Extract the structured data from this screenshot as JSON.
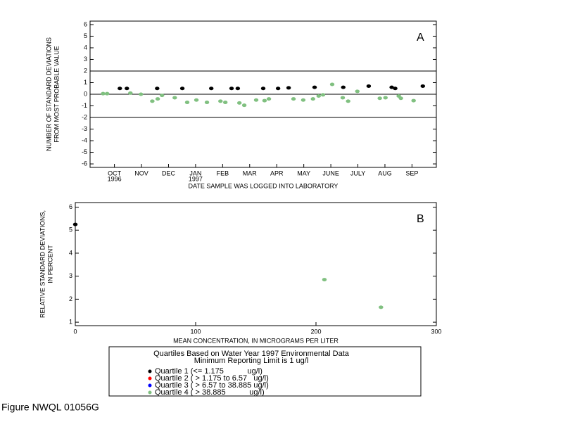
{
  "chart_data": [
    {
      "type": "scatter",
      "annotation": "A",
      "xlabel": "DATE SAMPLE WAS LOGGED INTO LABORATORY",
      "ylabel": [
        "NUMBER OF STANDARD DEVIATIONS",
        "FROM MOST PROBABLE VALUE"
      ],
      "xlim": [
        -0.4,
        12.4
      ],
      "ylim": [
        -6.3,
        6.3
      ],
      "xticks": [
        {
          "value": 0.5,
          "label": "OCT"
        },
        {
          "value": 1.5,
          "label": "NOV"
        },
        {
          "value": 2.5,
          "label": "DEC"
        },
        {
          "value": 3.5,
          "label": "JAN"
        },
        {
          "value": 4.5,
          "label": "FEB"
        },
        {
          "value": 5.5,
          "label": "MAR"
        },
        {
          "value": 6.5,
          "label": "APR"
        },
        {
          "value": 7.5,
          "label": "MAY"
        },
        {
          "value": 8.5,
          "label": "JUNE"
        },
        {
          "value": 9.5,
          "label": "JULY"
        },
        {
          "value": 10.5,
          "label": "AUG"
        },
        {
          "value": 11.5,
          "label": "SEP"
        }
      ],
      "xtick_years": [
        {
          "value": 0.5,
          "label": "1996"
        },
        {
          "value": 3.5,
          "label": "1997"
        }
      ],
      "yticks": [
        -6,
        -5,
        -4,
        -3,
        -2,
        -1,
        0,
        1,
        2,
        3,
        4,
        5,
        6
      ],
      "hlines": [
        2,
        0,
        -2
      ],
      "series": [
        {
          "color": "#000000",
          "x": [
            0.7,
            0.96,
            2.08,
            3.01,
            4.08,
            4.83,
            5.06,
            6.0,
            6.55,
            6.94,
            7.9,
            8.96,
            9.9,
            10.75,
            10.88,
            11.9
          ],
          "values": [
            0.5,
            0.5,
            0.5,
            0.5,
            0.5,
            0.5,
            0.5,
            0.5,
            0.5,
            0.55,
            0.6,
            0.6,
            0.7,
            0.6,
            0.5,
            0.7
          ]
        },
        {
          "color": "#80c080",
          "x": [
            0.08,
            0.23,
            1.09,
            1.48,
            1.9,
            2.1,
            2.26,
            2.73,
            3.19,
            3.53,
            3.92,
            4.42,
            4.6,
            5.12,
            5.3,
            5.74,
            6.05,
            6.21,
            7.12,
            7.48,
            7.84,
            8.05,
            8.21,
            8.55,
            8.94,
            9.14,
            9.48,
            10.31,
            10.52,
            11.01,
            11.09,
            11.56
          ],
          "values": [
            0.05,
            0.05,
            0.1,
            0,
            -0.6,
            -0.4,
            -0.1,
            -0.3,
            -0.7,
            -0.5,
            -0.7,
            -0.6,
            -0.7,
            -0.75,
            -0.95,
            -0.5,
            -0.55,
            -0.4,
            -0.4,
            -0.5,
            -0.4,
            -0.15,
            -0.05,
            0.85,
            -0.3,
            -0.6,
            0.25,
            -0.35,
            -0.3,
            -0.15,
            -0.35,
            -0.55
          ]
        }
      ]
    },
    {
      "type": "scatter",
      "annotation": "B",
      "xlabel": "MEAN CONCENTRATION, IN MICROGRAMS PER LITER",
      "ylabel": [
        "RELATIVE STANDARD DEVIATIONS,",
        "IN PERCENT"
      ],
      "xlim": [
        0,
        300
      ],
      "ylim": [
        0.85,
        6.2
      ],
      "xticks": [
        0,
        100,
        200,
        300
      ],
      "yticks": [
        1,
        2,
        3,
        4,
        5,
        6
      ],
      "series": [
        {
          "color": "#000000",
          "x": [
            0
          ],
          "values": [
            5.25
          ]
        },
        {
          "color": "#80c080",
          "x": [
            207,
            254
          ],
          "values": [
            2.85,
            1.65
          ]
        }
      ]
    }
  ],
  "legend": {
    "title": [
      "Quartiles Based on Water Year 1997 Environmental Data",
      "Minimum Reporting Limit is 1 ug/l"
    ],
    "entries": [
      {
        "name": "Quartile 1 (<= 1.175           ug/l)",
        "color": "#000000"
      },
      {
        "name": "Quartile 2 ( > 1.175 to 6.57   ug/l)",
        "color": "#ff0000"
      },
      {
        "name": "Quartile 3 ( > 6.57 to 38.885 ug/l)",
        "color": "#0000ff"
      },
      {
        "name": "Quartile 4 ( > 38.885           ug/l)",
        "color": "#80c080"
      }
    ]
  },
  "caption": "Figure NWQL 01056G"
}
